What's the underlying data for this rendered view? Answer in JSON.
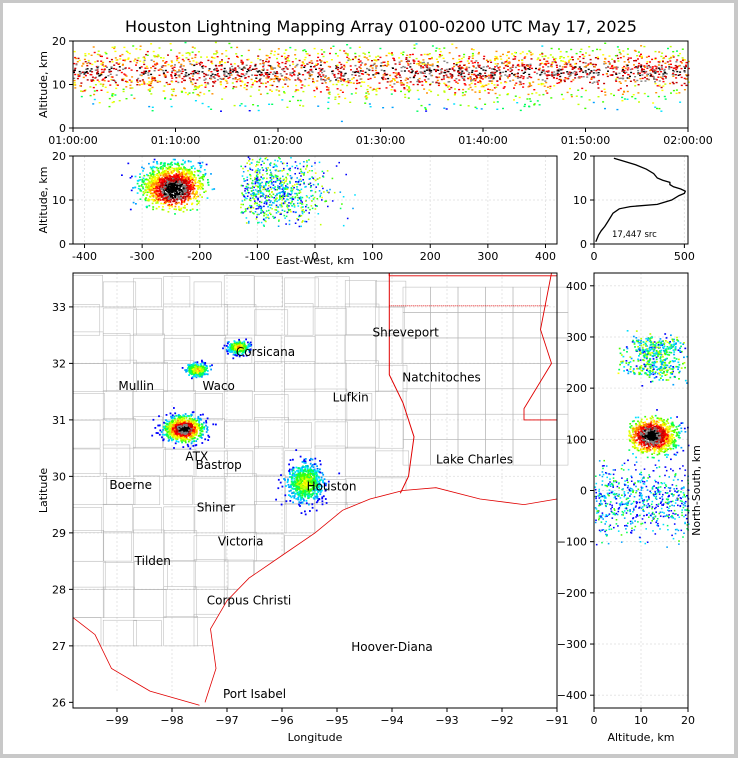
{
  "title": "Houston Lightning Mapping Array 0100-0200 UTC May 17, 2025",
  "chart_data": [
    {
      "panel": "time-altitude",
      "type": "scatter",
      "ylabel": "Altitude, km",
      "xlabel": "",
      "x_ticks": [
        "01:00:00",
        "01:10:00",
        "01:20:00",
        "01:30:00",
        "01:40:00",
        "01:50:00",
        "02:00:00"
      ],
      "y_ticks": [
        0,
        10,
        20
      ],
      "xlim_minutes": [
        0,
        60
      ],
      "ylim": [
        0,
        20
      ],
      "description_values": {
        "main_band_altitude_km": [
          8,
          20
        ],
        "core_altitude_km": 13
      }
    },
    {
      "panel": "east-west-altitude",
      "type": "scatter",
      "xlabel": "East-West, km",
      "ylabel": "Altitude, km",
      "x_ticks": [
        -400,
        -300,
        -200,
        -100,
        0,
        100,
        200,
        300,
        400
      ],
      "y_ticks": [
        0,
        10,
        20
      ],
      "xlim": [
        -420,
        420
      ],
      "ylim": [
        0,
        20
      ],
      "clusters": [
        {
          "x_range": [
            -280,
            -180
          ],
          "alt_range": [
            8,
            19
          ],
          "peak_x": -250,
          "peak_alt": 13
        },
        {
          "x_range": [
            -120,
            60
          ],
          "alt_range": [
            5,
            20
          ],
          "peak_x": -60,
          "peak_alt": 14
        }
      ]
    },
    {
      "panel": "altitude-histogram",
      "type": "line",
      "x_ticks": [
        0,
        500
      ],
      "y_ticks": [
        0,
        10,
        20
      ],
      "xlim": [
        0,
        520
      ],
      "ylim": [
        0,
        20
      ],
      "annotation": "17,447 src",
      "altitude_km": [
        0.5,
        1,
        2,
        3,
        4,
        5,
        6,
        7,
        8,
        8.5,
        9,
        10,
        11,
        11.5,
        12,
        12.5,
        13,
        13.5,
        14,
        14.5,
        15,
        16,
        17,
        18,
        19,
        19.5
      ],
      "count": [
        10,
        15,
        25,
        40,
        60,
        75,
        90,
        105,
        140,
        200,
        350,
        430,
        470,
        500,
        505,
        480,
        440,
        420,
        420,
        380,
        350,
        330,
        290,
        230,
        150,
        110
      ]
    },
    {
      "panel": "plan-view-map",
      "type": "scatter",
      "xlabel": "Longitude",
      "ylabel": "Latitude",
      "x_ticks": [
        -99,
        -98,
        -97,
        -96,
        -95,
        -94,
        -93,
        -92,
        -91
      ],
      "y_ticks": [
        26,
        27,
        28,
        29,
        30,
        31,
        32,
        33
      ],
      "xlim": [
        -99.8,
        -91
      ],
      "ylim": [
        25.9,
        33.6
      ],
      "clusters": [
        {
          "lon": -97.8,
          "lat": 30.85
        },
        {
          "lon": -97.55,
          "lat": 31.9
        },
        {
          "lon": -96.8,
          "lat": 32.3
        },
        {
          "lon": -95.6,
          "lat": 29.9
        }
      ],
      "cities": [
        {
          "name": "Shreveport",
          "lon": -93.75,
          "lat": 32.55,
          "color": "#000000"
        },
        {
          "name": "Natchitoches",
          "lon": -93.1,
          "lat": 31.75,
          "color": "#000000"
        },
        {
          "name": "Lufkin",
          "lon": -94.75,
          "lat": 31.4,
          "color": "#000000"
        },
        {
          "name": "Waco",
          "lon": -97.15,
          "lat": 31.6,
          "color": "#000000"
        },
        {
          "name": "Mullin",
          "lon": -98.65,
          "lat": 31.6,
          "color": "#f08c3c"
        },
        {
          "name": "Corsicana",
          "lon": -96.3,
          "lat": 32.2,
          "color": "#000000"
        },
        {
          "name": "Lake Charles",
          "lon": -92.5,
          "lat": 30.3,
          "color": "#000000"
        },
        {
          "name": "Boerne",
          "lon": -98.75,
          "lat": 29.85,
          "color": "#000000"
        },
        {
          "name": "Shiner",
          "lon": -97.2,
          "lat": 29.45,
          "color": "#000000"
        },
        {
          "name": "Bastrop",
          "lon": -97.15,
          "lat": 30.2,
          "color": "#000000"
        },
        {
          "name": "ATX",
          "lon": -97.55,
          "lat": 30.35,
          "color": "#f08c3c"
        },
        {
          "name": "Houston",
          "lon": -95.1,
          "lat": 29.82,
          "color": "#f0a000"
        },
        {
          "name": "Victoria",
          "lon": -96.75,
          "lat": 28.85,
          "color": "#000000"
        },
        {
          "name": "Tilden",
          "lon": -98.35,
          "lat": 28.5,
          "color": "#000000"
        },
        {
          "name": "Corpus Christi",
          "lon": -96.6,
          "lat": 27.8,
          "color": "#000000"
        },
        {
          "name": "Hoover-Diana",
          "lon": -94.0,
          "lat": 26.98,
          "color": "#1428ff"
        },
        {
          "name": "Port Isabel",
          "lon": -96.5,
          "lat": 26.15,
          "color": "#000000"
        }
      ]
    },
    {
      "panel": "north-south-altitude",
      "type": "scatter",
      "xlabel": "Altitude, km",
      "ylabel": "North-South, km",
      "x_ticks": [
        0,
        10,
        20
      ],
      "y_ticks": [
        -400,
        -300,
        -200,
        -100,
        0,
        100,
        200,
        300,
        400
      ],
      "xlim": [
        0,
        20
      ],
      "ylim": [
        -425,
        425
      ],
      "clusters": [
        {
          "ns_range": [
            220,
            300
          ],
          "alt_range": [
            5,
            20
          ]
        },
        {
          "ns_range": [
            70,
            150
          ],
          "alt_range": [
            7,
            20
          ],
          "peak_ns": 110,
          "peak_alt": 12
        },
        {
          "ns_range": [
            -110,
            60
          ],
          "alt_range": [
            0,
            20
          ]
        }
      ]
    }
  ],
  "colors": {
    "state_border": "#e00000",
    "county_border": "#b4b4b4",
    "coast": "#e00000"
  }
}
